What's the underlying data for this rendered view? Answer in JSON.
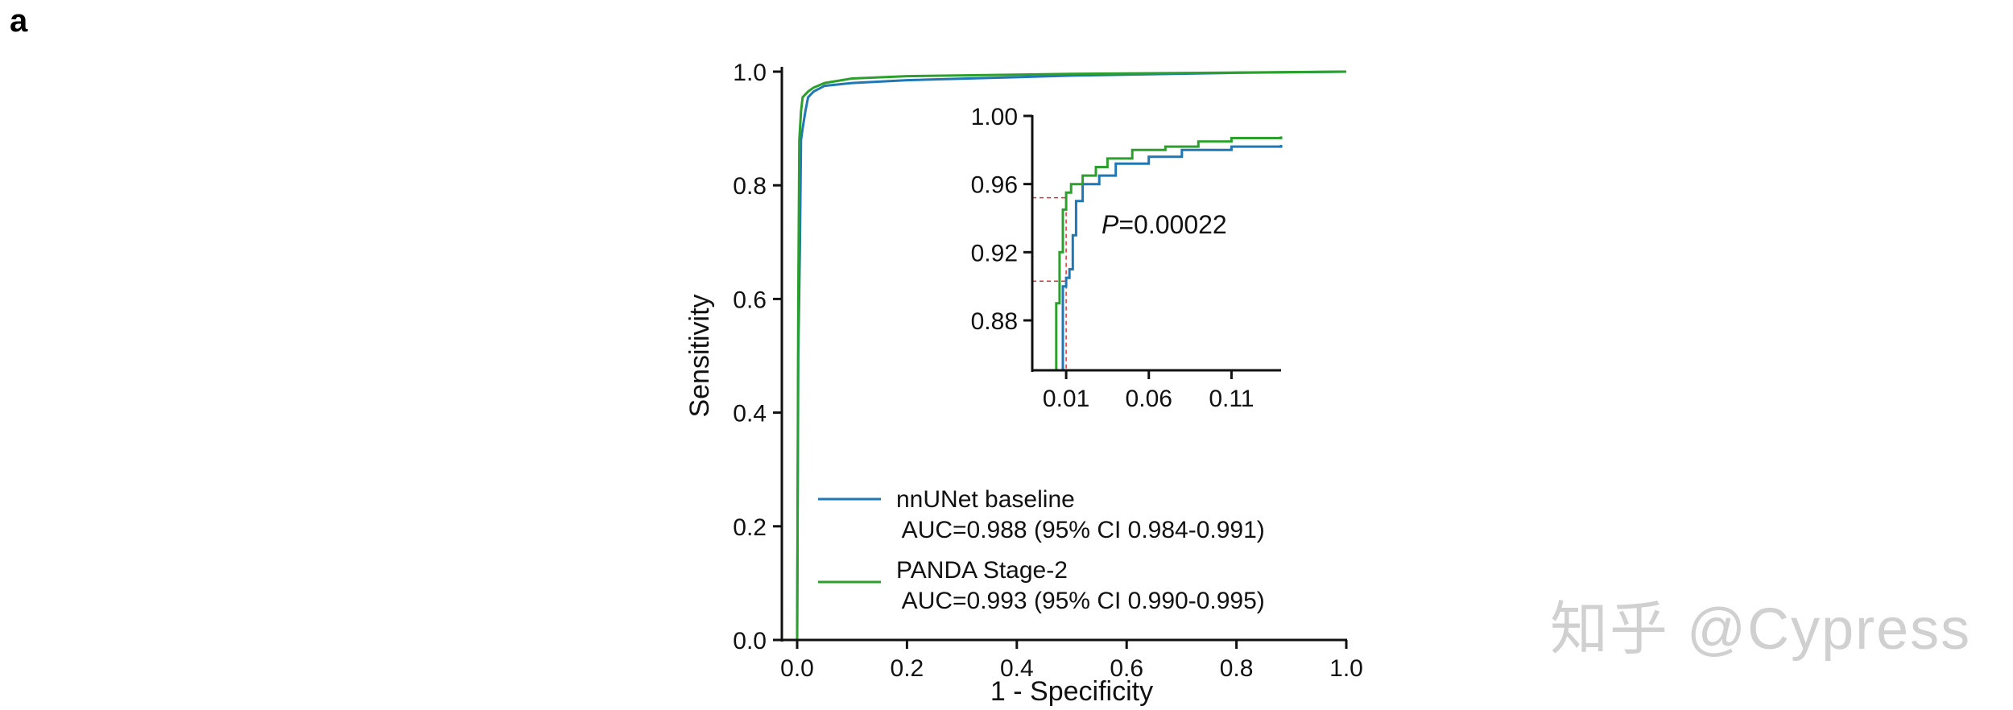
{
  "panel_label": "a",
  "watermark": "知乎 @Cypress",
  "chart_data": [
    {
      "type": "line",
      "xlabel": "1 - Specificity",
      "ylabel": "Sensitivity",
      "xlim": [
        -0.03,
        1.0
      ],
      "ylim": [
        -0.01,
        1.01
      ],
      "xticks": [
        "0.0",
        "0.2",
        "0.4",
        "0.6",
        "0.8",
        "1.0"
      ],
      "yticks": [
        "0.0",
        "0.2",
        "0.4",
        "0.6",
        "0.8",
        "1.0"
      ],
      "grid": false,
      "legend": "bottom-right",
      "series": [
        {
          "name": "nnUNet baseline",
          "label2": " AUC=0.988 (95% CI 0.984-0.991)",
          "color": "#1f77b4",
          "x": [
            0,
            0.002,
            0.005,
            0.007,
            0.01,
            0.015,
            0.02,
            0.03,
            0.05,
            0.1,
            0.2,
            0.5,
            0.8,
            1.0
          ],
          "y": [
            0,
            0.5,
            0.69,
            0.88,
            0.9,
            0.93,
            0.955,
            0.965,
            0.975,
            0.98,
            0.985,
            0.993,
            0.998,
            1.0
          ]
        },
        {
          "name": "PANDA Stage-2",
          "label2": " AUC=0.993 (95% CI 0.990-0.995)",
          "color": "#2ca02c",
          "x": [
            0,
            0.002,
            0.004,
            0.007,
            0.01,
            0.02,
            0.03,
            0.05,
            0.1,
            0.2,
            0.5,
            1.0
          ],
          "y": [
            0,
            0.6,
            0.88,
            0.93,
            0.955,
            0.965,
            0.972,
            0.98,
            0.988,
            0.992,
            0.996,
            1.0
          ]
        }
      ]
    },
    {
      "type": "line",
      "inset": true,
      "xlim": [
        -0.0105,
        0.14
      ],
      "ylim": [
        0.8507,
        1.0
      ],
      "xticks": [
        "0.01",
        "0.06",
        "0.11"
      ],
      "yticks": [
        "0.88",
        "0.92",
        "0.96",
        "1.00"
      ],
      "annotation_italic": "P",
      "annotation": "=0.00022",
      "reference_lines": {
        "color": "#e03030",
        "x": 0.01,
        "y": [
          0.952,
          0.903
        ]
      },
      "series": [
        {
          "color": "#1f77b4",
          "x": [
            0.007,
            0.008,
            0.01,
            0.012,
            0.014,
            0.016,
            0.02,
            0.03,
            0.04,
            0.06,
            0.08,
            0.11,
            0.14
          ],
          "y": [
            0.8507,
            0.9,
            0.905,
            0.91,
            0.93,
            0.95,
            0.96,
            0.965,
            0.972,
            0.976,
            0.98,
            0.982,
            0.983
          ]
        },
        {
          "color": "#2ca02c",
          "x": [
            0.003,
            0.004,
            0.006,
            0.008,
            0.01,
            0.013,
            0.02,
            0.028,
            0.035,
            0.05,
            0.07,
            0.09,
            0.11,
            0.14
          ],
          "y": [
            0.8507,
            0.89,
            0.92,
            0.945,
            0.955,
            0.96,
            0.965,
            0.97,
            0.975,
            0.98,
            0.982,
            0.985,
            0.987,
            0.988
          ]
        }
      ]
    }
  ]
}
